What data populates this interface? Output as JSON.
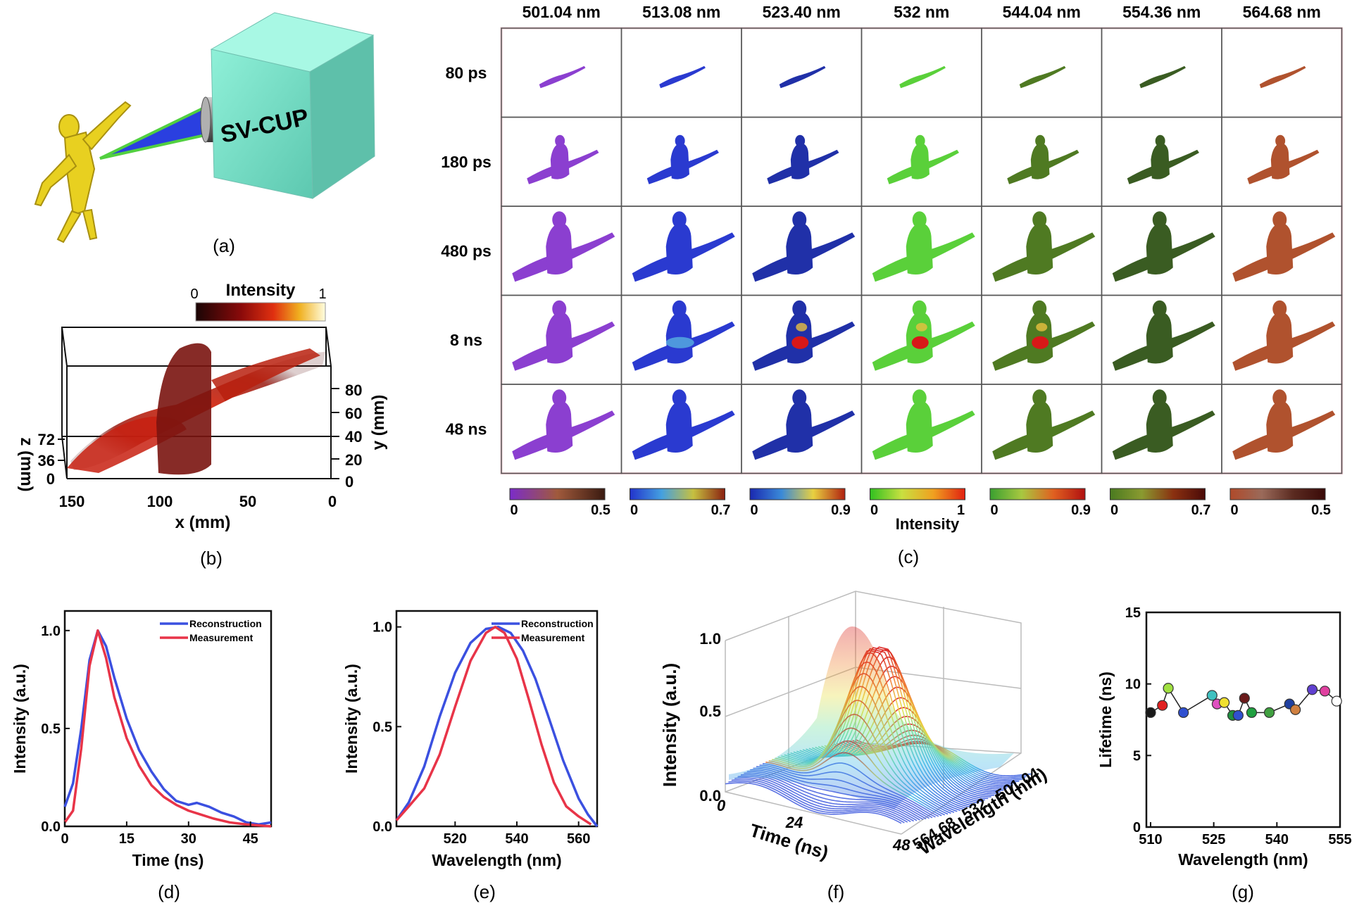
{
  "panel_labels": {
    "a": "(a)",
    "b": "(b)",
    "c": "(c)",
    "d": "(d)",
    "e": "(e)",
    "f": "(f)",
    "g": "(g)"
  },
  "panel_a": {
    "camera_label": "SV-CUP"
  },
  "panel_b": {
    "colorbar_title": "Intensity",
    "colorbar_min": "0",
    "colorbar_max": "1",
    "x_label": "x (mm)",
    "x_ticks": [
      "150",
      "100",
      "50",
      "0"
    ],
    "y_label": "y (mm)",
    "y_ticks": [
      "80",
      "60",
      "40",
      "20",
      "0"
    ],
    "z_label": "z (mm)",
    "z_ticks": [
      "72",
      "36",
      "0"
    ]
  },
  "panel_c": {
    "wavelengths": [
      "501.04 nm",
      "513.08 nm",
      "523.40 nm",
      "532 nm",
      "544.04 nm",
      "554.36 nm",
      "564.68 nm"
    ],
    "times": [
      "80 ps",
      "180 ps",
      "480 ps",
      "8 ns",
      "48 ns"
    ],
    "colorbars": [
      {
        "min": "0",
        "max": "0.5",
        "colors": [
          "#7b2cc9",
          "#a05a3c",
          "#3a1a10"
        ]
      },
      {
        "min": "0",
        "max": "0.7",
        "colors": [
          "#2233cc",
          "#44a0e0",
          "#c6c040",
          "#8a2010"
        ]
      },
      {
        "min": "0",
        "max": "0.9",
        "colors": [
          "#1a28b0",
          "#3a8ad8",
          "#e8d040",
          "#b02010"
        ]
      },
      {
        "min": "0",
        "max": "1",
        "colors": [
          "#30c020",
          "#c8e040",
          "#f0a020",
          "#e02010"
        ]
      },
      {
        "min": "0",
        "max": "0.9",
        "colors": [
          "#3aa030",
          "#a8c840",
          "#e06020",
          "#b01010"
        ]
      },
      {
        "min": "0",
        "max": "0.7",
        "colors": [
          "#4a7a20",
          "#8a9a30",
          "#8a3010",
          "#4a0a08"
        ]
      },
      {
        "min": "0",
        "max": "0.5",
        "colors": [
          "#b04a2a",
          "#9a6a5a",
          "#5a2a20",
          "#3a0a08"
        ]
      }
    ],
    "colorbar_label": "Intensity",
    "tile_colors": [
      "#8b3fd0",
      "#2a3ad0",
      "#2030a8",
      "#5ad03a",
      "#4f7a22",
      "#3a5c22",
      "#b0522e"
    ]
  },
  "chart_data": [
    {
      "id": "d",
      "type": "line",
      "xlabel": "Time (ns)",
      "ylabel": "Intensity (a.u.)",
      "xlim": [
        0,
        50
      ],
      "ylim": [
        0,
        1.1
      ],
      "x_ticks": [
        "0",
        "15",
        "30",
        "45"
      ],
      "y_ticks": [
        "0.0",
        "0.5",
        "1.0"
      ],
      "series": [
        {
          "name": "Reconstruction",
          "color": "#3b50e0",
          "x": [
            0,
            2,
            4,
            6,
            8,
            10,
            12,
            15,
            18,
            21,
            24,
            27,
            30,
            32,
            35,
            38,
            41,
            44,
            47,
            50
          ],
          "y": [
            0.1,
            0.22,
            0.5,
            0.85,
            1.0,
            0.92,
            0.76,
            0.55,
            0.39,
            0.28,
            0.19,
            0.13,
            0.11,
            0.12,
            0.1,
            0.07,
            0.05,
            0.02,
            0.01,
            0.02
          ]
        },
        {
          "name": "Measurement",
          "color": "#e83448",
          "x": [
            0,
            2,
            4,
            6,
            8,
            10,
            12,
            15,
            18,
            21,
            24,
            27,
            30,
            33,
            36,
            40,
            44,
            50
          ],
          "y": [
            0.02,
            0.08,
            0.4,
            0.82,
            1.0,
            0.86,
            0.66,
            0.45,
            0.31,
            0.21,
            0.15,
            0.11,
            0.08,
            0.06,
            0.04,
            0.02,
            0.01,
            0.0
          ]
        }
      ]
    },
    {
      "id": "e",
      "type": "line",
      "xlabel": "Wavelength (nm)",
      "ylabel": "Intensity (a.u.)",
      "xlim": [
        501,
        566
      ],
      "ylim": [
        0,
        1.08
      ],
      "x_ticks": [
        "520",
        "540",
        "560"
      ],
      "y_ticks": [
        "0.0",
        "0.5",
        "1.0"
      ],
      "series": [
        {
          "name": "Reconstruction",
          "color": "#3b50e0",
          "x": [
            501,
            505,
            510,
            515,
            520,
            525,
            530,
            534,
            538,
            542,
            546,
            550,
            555,
            560,
            563,
            566
          ],
          "y": [
            0.03,
            0.12,
            0.3,
            0.55,
            0.77,
            0.92,
            0.99,
            1.0,
            0.97,
            0.88,
            0.74,
            0.56,
            0.33,
            0.14,
            0.06,
            0.0
          ]
        },
        {
          "name": "Measurement",
          "color": "#e83448",
          "x": [
            501,
            505,
            510,
            515,
            520,
            525,
            530,
            533,
            536,
            540,
            544,
            548,
            552,
            556,
            560,
            564
          ],
          "y": [
            0.03,
            0.1,
            0.19,
            0.36,
            0.6,
            0.83,
            0.97,
            1.0,
            0.97,
            0.84,
            0.63,
            0.41,
            0.22,
            0.1,
            0.05,
            0.01
          ]
        }
      ]
    },
    {
      "id": "f",
      "type": "surface",
      "zlabel": "Intensity (a.u.)",
      "xlabel": "Time (ns)",
      "ylabel": "Wavelength (nm)",
      "x_ticks": [
        "0",
        "24",
        "48"
      ],
      "y_ticks": [
        "564.68",
        "532",
        "501.04"
      ],
      "z_ticks": [
        "0.0",
        "0.5",
        "1.0"
      ]
    },
    {
      "id": "g",
      "type": "scatter",
      "xlabel": "Wavelength (nm)",
      "ylabel": "Lifetime (ns)",
      "xlim": [
        509,
        555
      ],
      "ylim": [
        0,
        15
      ],
      "x_ticks": [
        "510",
        "525",
        "540",
        "555"
      ],
      "y_ticks": [
        "0",
        "5",
        "10",
        "15"
      ],
      "points": [
        {
          "x": 510.0,
          "y": 8.0,
          "color": "#1a1a1a"
        },
        {
          "x": 512.8,
          "y": 8.5,
          "color": "#e02020"
        },
        {
          "x": 514.2,
          "y": 9.7,
          "color": "#a0e040"
        },
        {
          "x": 517.8,
          "y": 8.0,
          "color": "#3050d0"
        },
        {
          "x": 524.6,
          "y": 9.2,
          "color": "#40c0c0"
        },
        {
          "x": 525.8,
          "y": 8.6,
          "color": "#e050c0"
        },
        {
          "x": 527.5,
          "y": 8.7,
          "color": "#f0e030"
        },
        {
          "x": 529.5,
          "y": 7.8,
          "color": "#209040"
        },
        {
          "x": 530.8,
          "y": 7.8,
          "color": "#3050d0"
        },
        {
          "x": 532.3,
          "y": 9.0,
          "color": "#6a1a1a"
        },
        {
          "x": 534.0,
          "y": 8.0,
          "color": "#20a040"
        },
        {
          "x": 538.2,
          "y": 8.0,
          "color": "#40a040"
        },
        {
          "x": 543.0,
          "y": 8.6,
          "color": "#2040a0"
        },
        {
          "x": 544.4,
          "y": 8.2,
          "color": "#d08040"
        },
        {
          "x": 548.4,
          "y": 9.6,
          "color": "#6040d0"
        },
        {
          "x": 551.4,
          "y": 9.5,
          "color": "#e040a0"
        },
        {
          "x": 554.2,
          "y": 8.8,
          "color": "#ffffff"
        }
      ]
    }
  ]
}
